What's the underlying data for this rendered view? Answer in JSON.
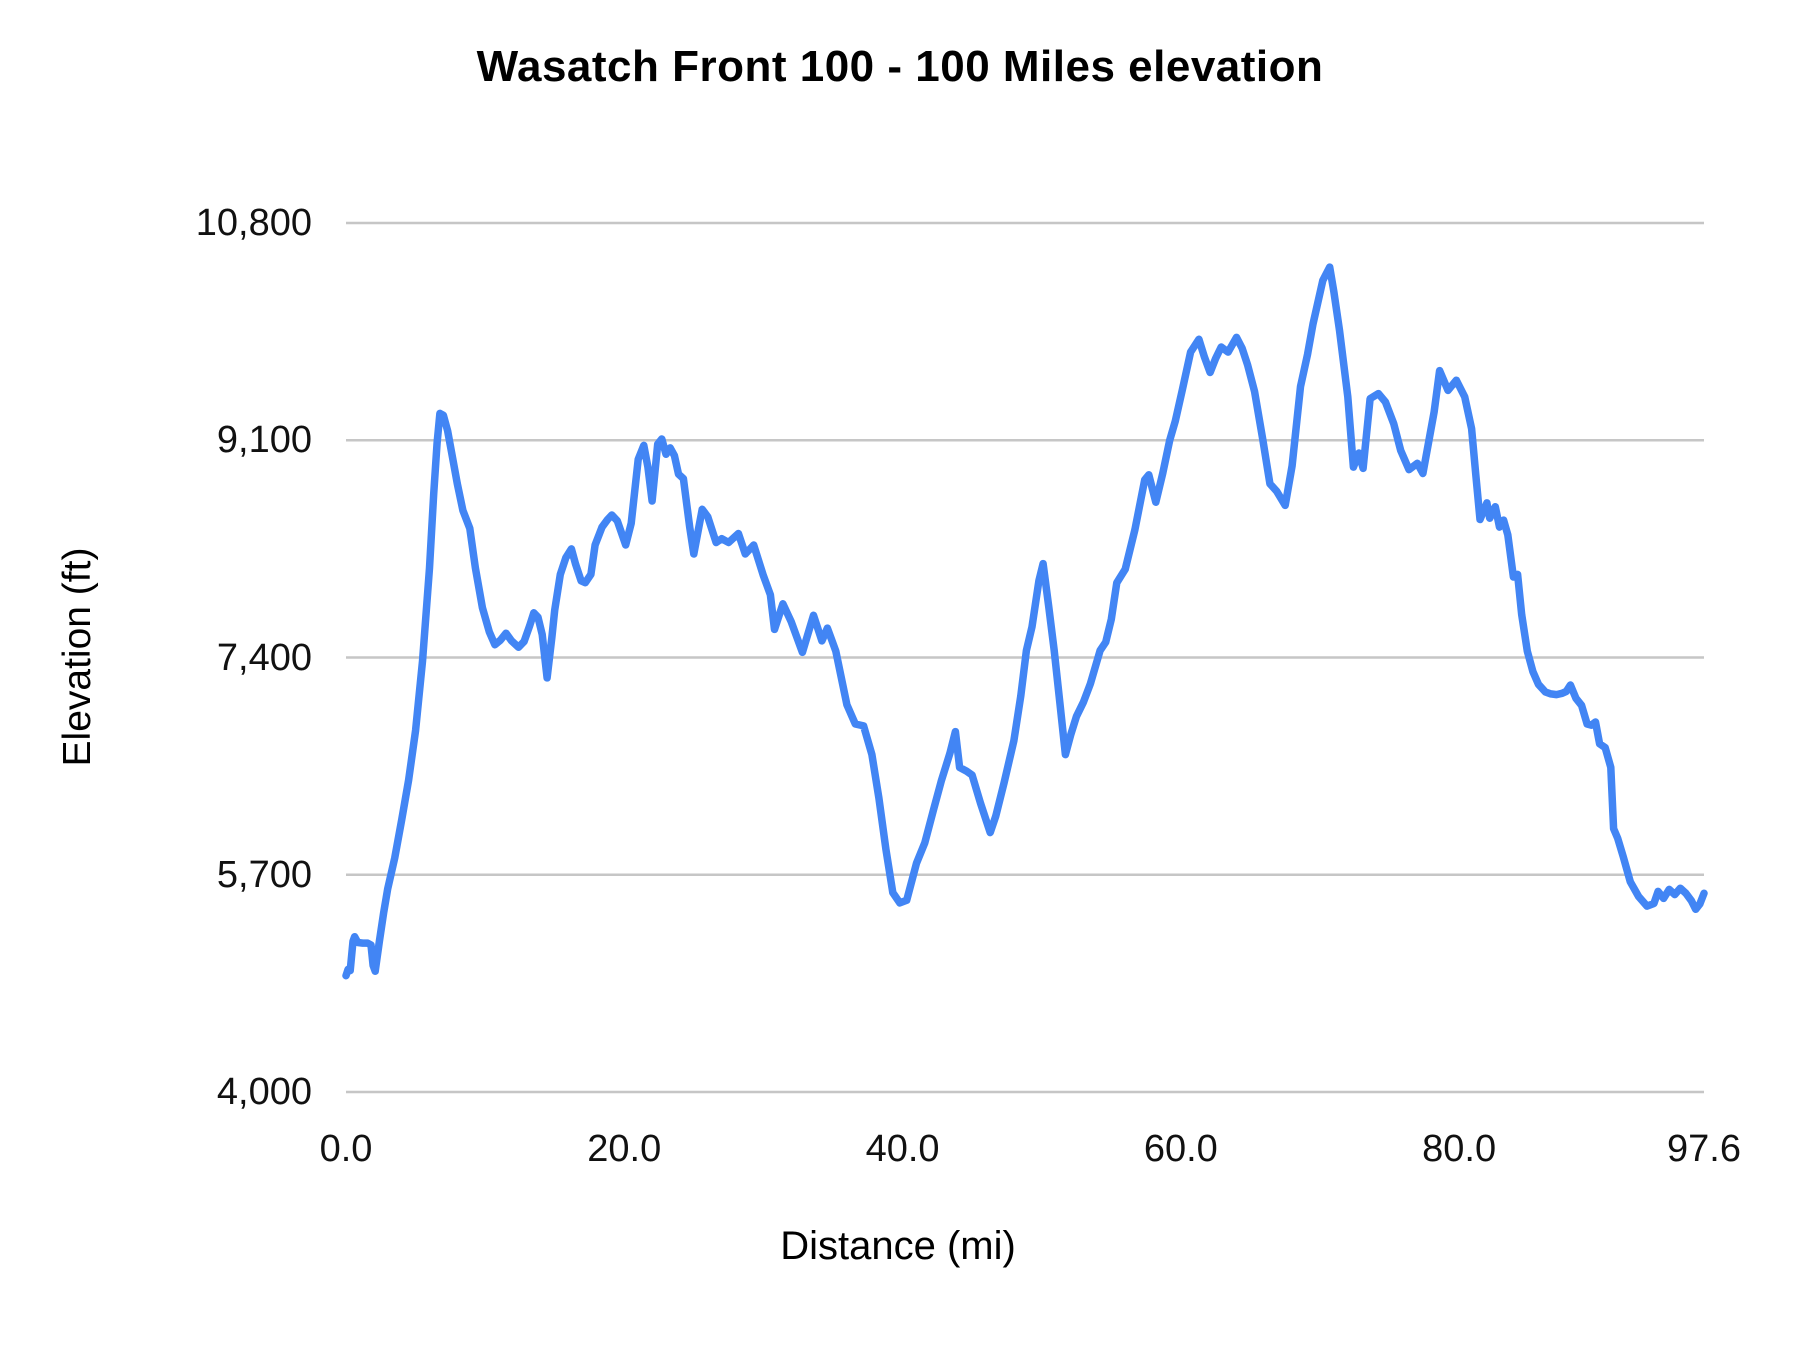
{
  "chart_data": {
    "type": "line",
    "title": "Wasatch Front 100 - 100 Miles elevation",
    "xlabel": "Distance (mi)",
    "ylabel": "Elevation (ft)",
    "xlim": [
      0,
      97.6
    ],
    "ylim": [
      4000,
      10800
    ],
    "grid": "horizontal-only",
    "legend": "none",
    "line_color": "#4285f4",
    "grid_color": "#c6c6c6",
    "x_ticks": [
      {
        "value": 0.0,
        "label": "0.0"
      },
      {
        "value": 20.0,
        "label": "20.0"
      },
      {
        "value": 40.0,
        "label": "40.0"
      },
      {
        "value": 60.0,
        "label": "60.0"
      },
      {
        "value": 80.0,
        "label": "80.0"
      },
      {
        "value": 97.6,
        "label": "97.6"
      }
    ],
    "y_ticks": [
      {
        "value": 4000,
        "label": "4,000"
      },
      {
        "value": 5700,
        "label": "5,700"
      },
      {
        "value": 7400,
        "label": "7,400"
      },
      {
        "value": 9100,
        "label": "9,100"
      },
      {
        "value": 10800,
        "label": "10,800"
      }
    ],
    "series": [
      {
        "name": "Elevation (ft)",
        "x": [
          0,
          0.15,
          0.3,
          0.5,
          0.62,
          0.85,
          1.2,
          1.55,
          1.8,
          1.95,
          2.1,
          2.4,
          2.7,
          3.0,
          3.5,
          4.0,
          4.5,
          5.0,
          5.5,
          6.0,
          6.3,
          6.55,
          6.75,
          7.0,
          7.3,
          7.6,
          8.0,
          8.4,
          8.9,
          9.3,
          9.8,
          10.3,
          10.7,
          11.1,
          11.5,
          11.9,
          12.4,
          12.8,
          13.2,
          13.5,
          13.8,
          14.1,
          14.45,
          14.8,
          15.0,
          15.4,
          15.8,
          16.2,
          16.5,
          16.9,
          17.2,
          17.6,
          17.9,
          18.4,
          18.8,
          19.1,
          19.5,
          20.1,
          20.5,
          21.0,
          21.4,
          21.7,
          22.0,
          22.4,
          22.7,
          23.0,
          23.3,
          23.6,
          23.9,
          24.25,
          24.7,
          25.0,
          25.6,
          26.0,
          26.6,
          27.0,
          27.5,
          28.2,
          28.7,
          29.3,
          30.0,
          30.5,
          30.8,
          31.4,
          32.0,
          32.8,
          33.6,
          34.2,
          34.6,
          35.2,
          36.0,
          36.6,
          37.2,
          37.8,
          38.3,
          38.8,
          39.3,
          39.8,
          40.3,
          41.0,
          41.6,
          42.2,
          42.8,
          43.4,
          43.8,
          44.1,
          44.6,
          45.0,
          45.6,
          46.3,
          46.7,
          47.3,
          48.0,
          48.5,
          48.9,
          49.3,
          49.8,
          50.1,
          50.5,
          50.9,
          51.3,
          51.7,
          52.1,
          52.5,
          53.0,
          53.5,
          54.2,
          54.6,
          55.0,
          55.4,
          56.0,
          56.7,
          57.4,
          57.7,
          58.2,
          58.7,
          59.2,
          59.6,
          60.1,
          60.7,
          61.3,
          61.7,
          62.1,
          62.5,
          62.9,
          63.4,
          64.0,
          64.4,
          64.8,
          65.3,
          65.9,
          66.4,
          66.9,
          67.5,
          68.0,
          68.6,
          69.1,
          69.5,
          70.2,
          70.7,
          71.0,
          71.4,
          72.0,
          72.4,
          72.8,
          73.1,
          73.6,
          74.2,
          74.7,
          75.3,
          75.8,
          76.4,
          77.0,
          77.4,
          77.8,
          78.2,
          78.6,
          79.2,
          79.8,
          80.4,
          80.9,
          81.2,
          81.5,
          82.0,
          82.2,
          82.6,
          82.9,
          83.2,
          83.5,
          83.9,
          84.2,
          84.5,
          84.9,
          85.3,
          85.7,
          86.2,
          86.6,
          87.0,
          87.4,
          87.7,
          88.0,
          88.4,
          88.8,
          89.2,
          89.5,
          89.8,
          90.1,
          90.5,
          90.9,
          91.1,
          91.4,
          91.8,
          92.3,
          92.9,
          93.5,
          94.0,
          94.3,
          94.7,
          95.1,
          95.5,
          95.9,
          96.3,
          96.7,
          97.0,
          97.3,
          97.6
        ],
        "y": [
          4910,
          4960,
          4950,
          5180,
          5215,
          5170,
          5165,
          5165,
          5150,
          4990,
          4945,
          5180,
          5400,
          5590,
          5830,
          6130,
          6440,
          6830,
          7370,
          8100,
          8680,
          9080,
          9310,
          9295,
          9175,
          9000,
          8760,
          8550,
          8410,
          8100,
          7790,
          7600,
          7500,
          7535,
          7590,
          7530,
          7480,
          7525,
          7650,
          7750,
          7715,
          7580,
          7240,
          7560,
          7770,
          8050,
          8180,
          8250,
          8130,
          8000,
          7985,
          8050,
          8280,
          8420,
          8480,
          8515,
          8470,
          8280,
          8450,
          8950,
          9060,
          8890,
          8625,
          9070,
          9110,
          8990,
          9040,
          8980,
          8835,
          8800,
          8420,
          8210,
          8560,
          8500,
          8300,
          8330,
          8300,
          8370,
          8210,
          8280,
          8040,
          7890,
          7620,
          7820,
          7680,
          7440,
          7730,
          7530,
          7630,
          7450,
          7030,
          6880,
          6865,
          6640,
          6300,
          5900,
          5560,
          5480,
          5500,
          5790,
          5950,
          6200,
          6440,
          6650,
          6820,
          6540,
          6510,
          6480,
          6260,
          6030,
          6160,
          6420,
          6750,
          7100,
          7455,
          7640,
          8000,
          8135,
          7800,
          7455,
          7050,
          6640,
          6800,
          6940,
          7050,
          7195,
          7455,
          7520,
          7700,
          7985,
          8090,
          8400,
          8790,
          8830,
          8615,
          8840,
          9100,
          9250,
          9490,
          9790,
          9890,
          9750,
          9630,
          9740,
          9830,
          9790,
          9905,
          9820,
          9690,
          9480,
          9100,
          8760,
          8700,
          8590,
          8900,
          9520,
          9770,
          10010,
          10350,
          10455,
          10260,
          9960,
          9440,
          8890,
          9000,
          8880,
          9425,
          9465,
          9400,
          9230,
          9020,
          8870,
          8920,
          8840,
          9080,
          9320,
          9645,
          9490,
          9570,
          9440,
          9190,
          8830,
          8480,
          8610,
          8490,
          8580,
          8420,
          8475,
          8360,
          8030,
          8050,
          7735,
          7450,
          7290,
          7190,
          7130,
          7115,
          7110,
          7120,
          7135,
          7185,
          7080,
          7025,
          6880,
          6870,
          6895,
          6725,
          6695,
          6540,
          6060,
          5985,
          5840,
          5645,
          5530,
          5455,
          5475,
          5570,
          5515,
          5585,
          5545,
          5595,
          5555,
          5495,
          5430,
          5470,
          5555
        ]
      }
    ]
  },
  "plot": {
    "line_width": 7.5,
    "grid_width": 2.5
  }
}
